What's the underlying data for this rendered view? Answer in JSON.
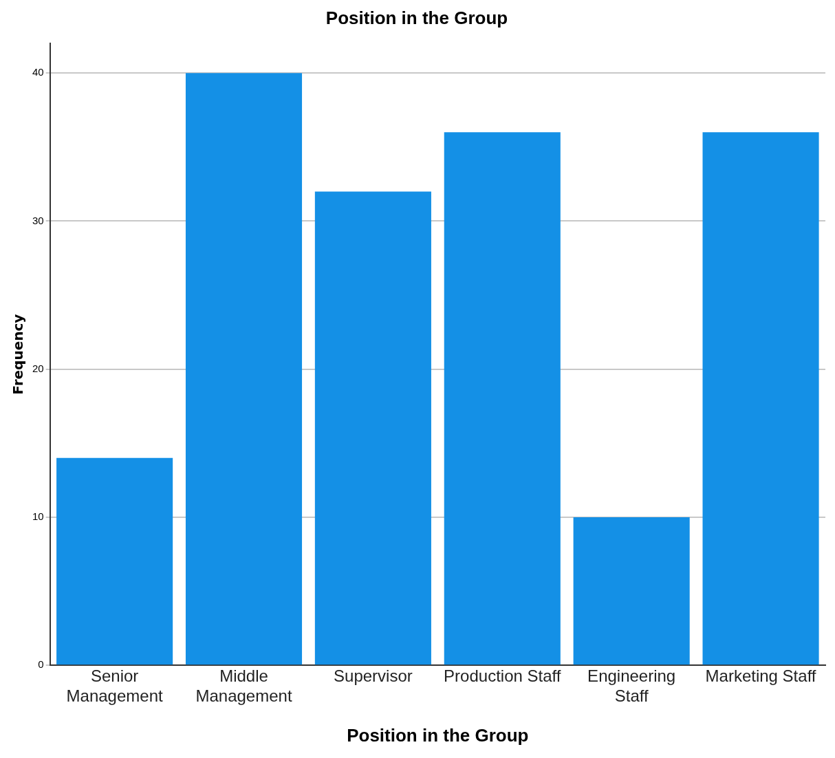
{
  "chart_data": {
    "type": "bar",
    "title": "Position in the Group",
    "xlabel": "Position in the Group",
    "ylabel": "Frequency",
    "categories": [
      "Senior Management",
      "Middle Management",
      "Supervisor",
      "Production Staff",
      "Engineering Staff",
      "Marketing Staff"
    ],
    "values": [
      14,
      40,
      32,
      36,
      10,
      36
    ],
    "color": "#1490e6",
    "ylim": [
      0,
      42
    ],
    "yticks": [
      0,
      10,
      20,
      30,
      40
    ],
    "grid": "y",
    "legend": false
  }
}
